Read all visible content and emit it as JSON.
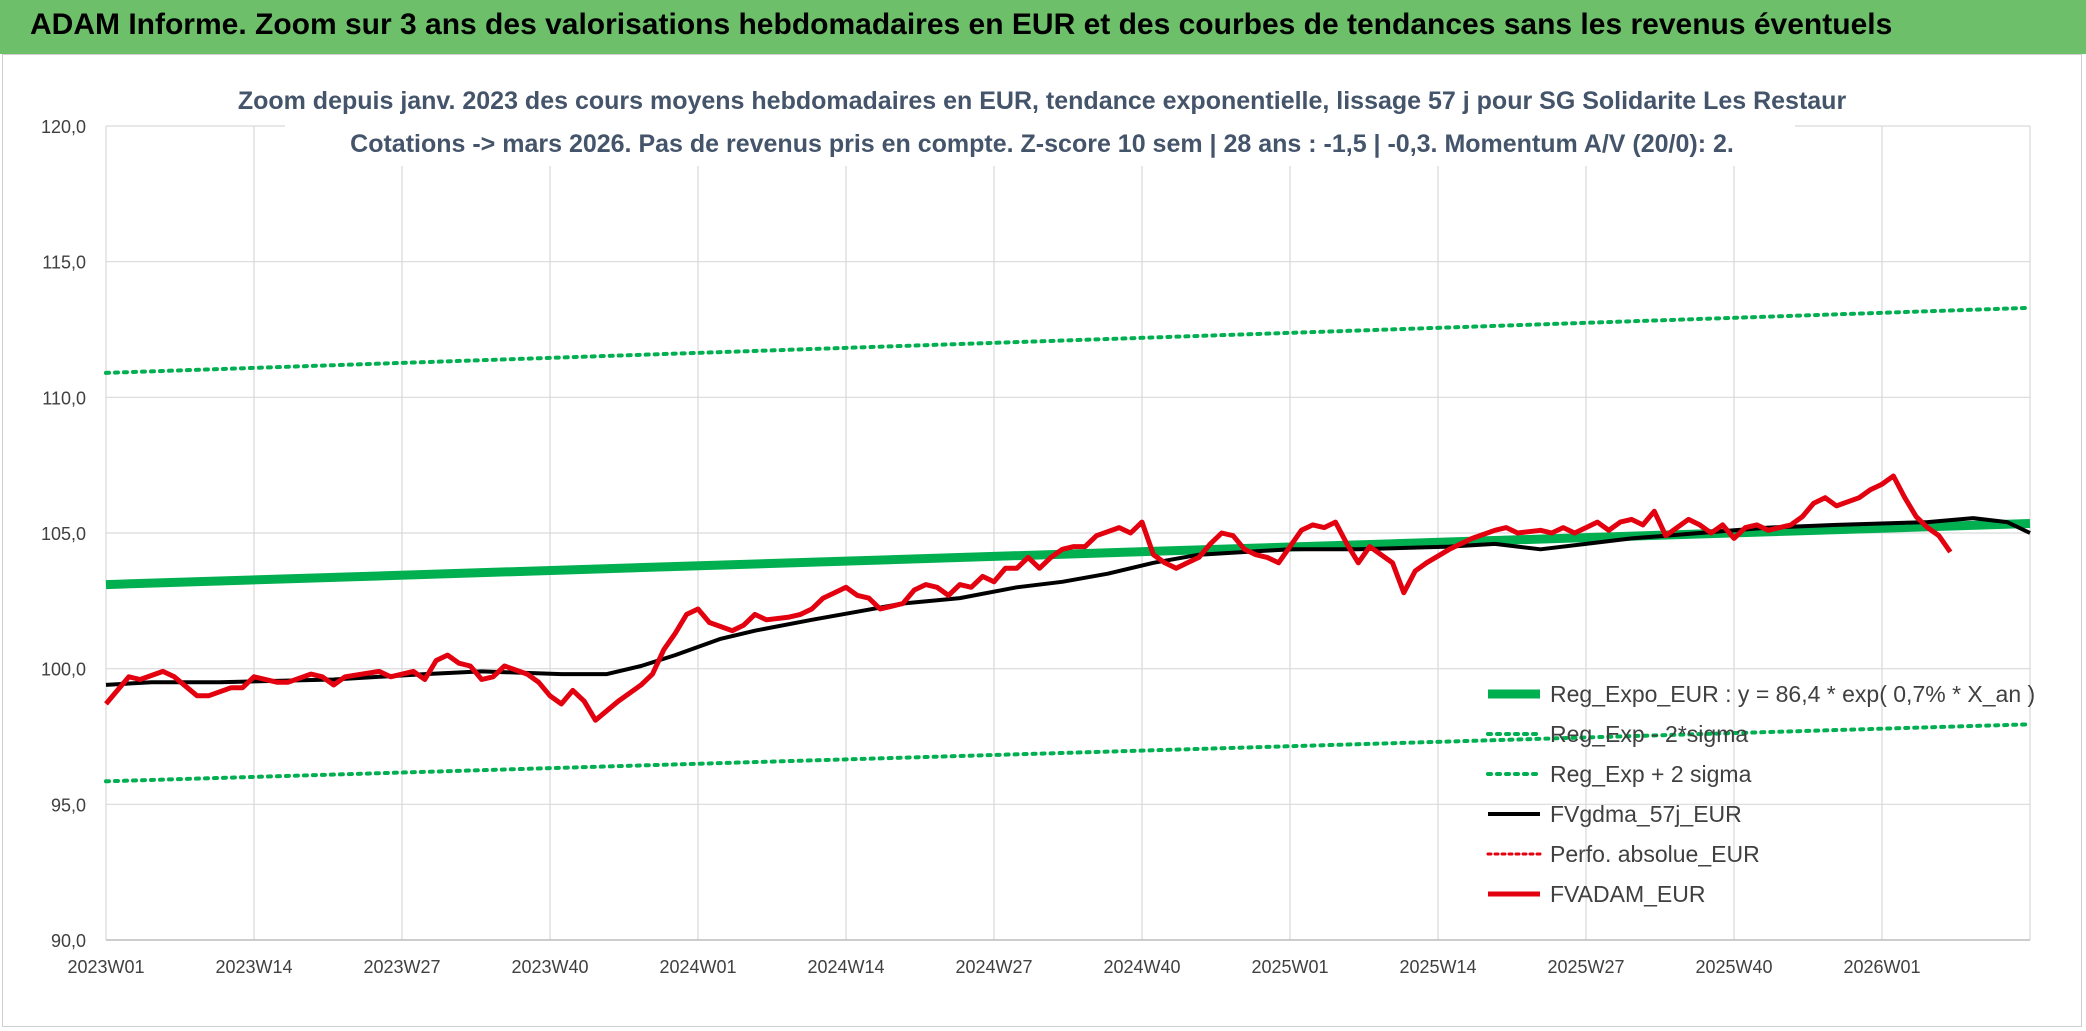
{
  "header": {
    "title": "ADAM Informe. Zoom sur 3 ans des valorisations hebdomadaires en EUR et des courbes de tendances sans les revenus éventuels"
  },
  "colors": {
    "header_bg": "#6dbf6a",
    "trend": "#00b050",
    "trend_band": "#00b050",
    "sma": "#000000",
    "price": "#e3000f",
    "perf": "#e3000f",
    "grid": "#d9d9d9"
  },
  "chart_data": {
    "type": "line",
    "subtitle_lines": [
      "Zoom depuis janv. 2023 des cours moyens hebdomadaires en EUR, tendance exponentielle, lissage 57 j pour SG Solidarite Les Restaur",
      "Cotations -> mars 2026. Pas de revenus pris en compte. Z-score 10 sem | 28 ans : -1,5 | -0,3. Momentum A/V (20/0): 2."
    ],
    "x_tick_labels": [
      "2023W01",
      "2023W14",
      "2023W27",
      "2023W40",
      "2024W01",
      "2024W14",
      "2024W27",
      "2024W40",
      "2025W01",
      "2025W14",
      "2025W27",
      "2025W40",
      "2026W01"
    ],
    "y_tick_labels": [
      "90,0",
      "95,0",
      "100,0",
      "105,0",
      "110,0",
      "115,0",
      "120,0"
    ],
    "ylim": [
      90,
      120
    ],
    "week_count": 170,
    "series": [
      {
        "name": "Reg_Expo_EUR : y = 86,4 * exp( 0,7% *  X_an )",
        "style": "thick",
        "color": "#00b050",
        "points": [
          [
            0,
            103.1
          ],
          [
            169,
            105.35
          ]
        ]
      },
      {
        "name": "Reg_Exp - 2*sigma",
        "style": "dotted",
        "color": "#00b050",
        "points": [
          [
            0,
            95.85
          ],
          [
            169,
            97.95
          ]
        ]
      },
      {
        "name": "Reg_Exp + 2 sigma",
        "style": "dotted",
        "color": "#00b050",
        "points": [
          [
            0,
            110.9
          ],
          [
            169,
            113.3
          ]
        ]
      },
      {
        "name": "FVgdma_57j_EUR",
        "style": "solid",
        "color": "#000000",
        "points": [
          [
            0,
            99.4
          ],
          [
            4,
            99.5
          ],
          [
            10,
            99.5
          ],
          [
            20,
            99.6
          ],
          [
            28,
            99.8
          ],
          [
            33,
            99.9
          ],
          [
            40,
            99.8
          ],
          [
            44,
            99.8
          ],
          [
            47,
            100.1
          ],
          [
            50,
            100.5
          ],
          [
            54,
            101.1
          ],
          [
            57,
            101.4
          ],
          [
            62,
            101.8
          ],
          [
            66,
            102.1
          ],
          [
            70,
            102.4
          ],
          [
            75,
            102.6
          ],
          [
            80,
            103.0
          ],
          [
            84,
            103.2
          ],
          [
            88,
            103.5
          ],
          [
            92,
            103.9
          ],
          [
            96,
            104.2
          ],
          [
            100,
            104.3
          ],
          [
            104,
            104.4
          ],
          [
            110,
            104.4
          ],
          [
            118,
            104.5
          ],
          [
            122,
            104.6
          ],
          [
            126,
            104.4
          ],
          [
            130,
            104.6
          ],
          [
            134,
            104.8
          ],
          [
            140,
            105.0
          ],
          [
            146,
            105.2
          ],
          [
            152,
            105.3
          ],
          [
            160,
            105.4
          ],
          [
            164,
            105.55
          ],
          [
            167,
            105.4
          ],
          [
            169,
            105.0
          ]
        ]
      },
      {
        "name": "Perfo. absolue_EUR",
        "style": "dotted-red",
        "color": "#e3000f",
        "points": []
      },
      {
        "name": "FVADAM_EUR",
        "style": "thick",
        "color": "#e3000f",
        "points": [
          [
            0,
            98.7
          ],
          [
            2,
            99.7
          ],
          [
            3,
            99.6
          ],
          [
            5,
            99.9
          ],
          [
            6,
            99.7
          ],
          [
            8,
            99.0
          ],
          [
            9,
            99.0
          ],
          [
            11,
            99.3
          ],
          [
            12,
            99.3
          ],
          [
            13,
            99.7
          ],
          [
            15,
            99.5
          ],
          [
            16,
            99.5
          ],
          [
            18,
            99.8
          ],
          [
            19,
            99.7
          ],
          [
            20,
            99.4
          ],
          [
            21,
            99.7
          ],
          [
            24,
            99.9
          ],
          [
            25,
            99.7
          ],
          [
            27,
            99.9
          ],
          [
            28,
            99.6
          ],
          [
            29,
            100.3
          ],
          [
            30,
            100.5
          ],
          [
            31,
            100.2
          ],
          [
            32,
            100.1
          ],
          [
            33,
            99.6
          ],
          [
            34,
            99.7
          ],
          [
            35,
            100.1
          ],
          [
            37,
            99.8
          ],
          [
            38,
            99.5
          ],
          [
            39,
            99.0
          ],
          [
            40,
            98.7
          ],
          [
            41,
            99.2
          ],
          [
            42,
            98.8
          ],
          [
            43,
            98.1
          ],
          [
            45,
            98.8
          ],
          [
            47,
            99.4
          ],
          [
            48,
            99.8
          ],
          [
            49,
            100.7
          ],
          [
            50,
            101.3
          ],
          [
            51,
            102.0
          ],
          [
            52,
            102.2
          ],
          [
            53,
            101.7
          ],
          [
            55,
            101.4
          ],
          [
            56,
            101.6
          ],
          [
            57,
            102.0
          ],
          [
            58,
            101.8
          ],
          [
            60,
            101.9
          ],
          [
            61,
            102.0
          ],
          [
            62,
            102.2
          ],
          [
            63,
            102.6
          ],
          [
            64,
            102.8
          ],
          [
            65,
            103.0
          ],
          [
            66,
            102.7
          ],
          [
            67,
            102.6
          ],
          [
            68,
            102.2
          ],
          [
            70,
            102.4
          ],
          [
            71,
            102.9
          ],
          [
            72,
            103.1
          ],
          [
            73,
            103.0
          ],
          [
            74,
            102.7
          ],
          [
            75,
            103.1
          ],
          [
            76,
            103.0
          ],
          [
            77,
            103.4
          ],
          [
            78,
            103.2
          ],
          [
            79,
            103.7
          ],
          [
            80,
            103.7
          ],
          [
            81,
            104.1
          ],
          [
            82,
            103.7
          ],
          [
            83,
            104.1
          ],
          [
            84,
            104.4
          ],
          [
            85,
            104.5
          ],
          [
            86,
            104.5
          ],
          [
            87,
            104.9
          ],
          [
            89,
            105.2
          ],
          [
            90,
            105.0
          ],
          [
            91,
            105.4
          ],
          [
            92,
            104.2
          ],
          [
            93,
            103.9
          ],
          [
            94,
            103.7
          ],
          [
            95,
            103.9
          ],
          [
            96,
            104.1
          ],
          [
            97,
            104.6
          ],
          [
            98,
            105.0
          ],
          [
            99,
            104.9
          ],
          [
            100,
            104.4
          ],
          [
            101,
            104.2
          ],
          [
            102,
            104.1
          ],
          [
            103,
            103.9
          ],
          [
            104,
            104.5
          ],
          [
            105,
            105.1
          ],
          [
            106,
            105.3
          ],
          [
            107,
            105.2
          ],
          [
            108,
            105.4
          ],
          [
            109,
            104.6
          ],
          [
            110,
            103.9
          ],
          [
            111,
            104.5
          ],
          [
            112,
            104.2
          ],
          [
            113,
            103.9
          ],
          [
            114,
            102.8
          ],
          [
            115,
            103.6
          ],
          [
            116,
            103.9
          ],
          [
            118,
            104.4
          ],
          [
            120,
            104.8
          ],
          [
            122,
            105.1
          ],
          [
            123,
            105.2
          ],
          [
            124,
            105.0
          ],
          [
            126,
            105.1
          ],
          [
            127,
            105.0
          ],
          [
            128,
            105.2
          ],
          [
            129,
            105.0
          ],
          [
            130,
            105.2
          ],
          [
            131,
            105.4
          ],
          [
            132,
            105.1
          ],
          [
            133,
            105.4
          ],
          [
            134,
            105.5
          ],
          [
            135,
            105.3
          ],
          [
            136,
            105.8
          ],
          [
            137,
            104.9
          ],
          [
            138,
            105.2
          ],
          [
            139,
            105.5
          ],
          [
            140,
            105.3
          ],
          [
            141,
            105.0
          ],
          [
            142,
            105.3
          ],
          [
            143,
            104.8
          ],
          [
            144,
            105.2
          ],
          [
            145,
            105.3
          ],
          [
            146,
            105.1
          ],
          [
            148,
            105.3
          ],
          [
            149,
            105.6
          ],
          [
            150,
            106.1
          ],
          [
            151,
            106.3
          ],
          [
            152,
            106.0
          ],
          [
            154,
            106.3
          ],
          [
            155,
            106.6
          ],
          [
            156,
            106.8
          ],
          [
            157,
            107.1
          ],
          [
            158,
            106.3
          ],
          [
            159,
            105.6
          ],
          [
            160,
            105.2
          ],
          [
            161,
            104.9
          ],
          [
            162,
            104.3
          ]
        ]
      }
    ]
  }
}
